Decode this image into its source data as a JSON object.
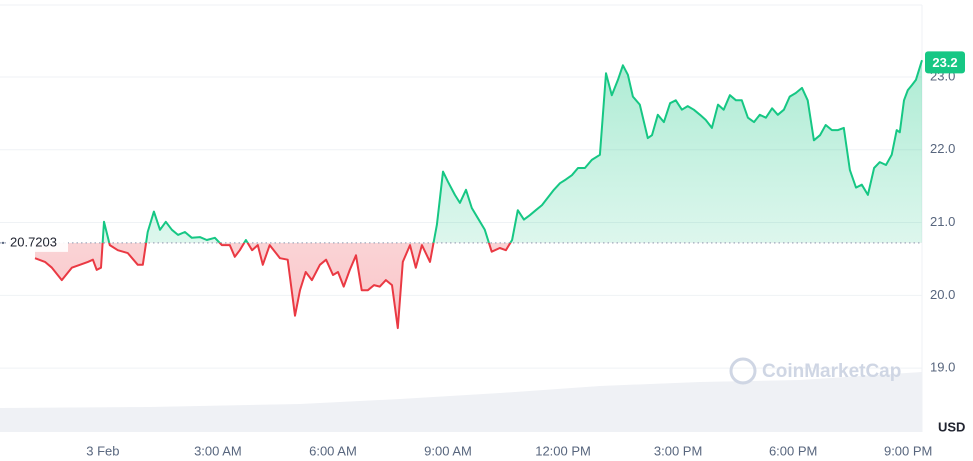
{
  "chart_data": {
    "type": "line",
    "y_axis_label": "USD",
    "watermark": "CoinMarketCap",
    "reference_price": 20.7203,
    "current_price": 23.2,
    "up_color": "#16c784",
    "down_color": "#ea3943",
    "grid": true,
    "xlim": [
      -1.77,
      21.36
    ],
    "ylim": [
      18.15,
      23.99
    ],
    "xticks": [
      {
        "value": 0,
        "label": "3 Feb"
      },
      {
        "value": 3,
        "label": "3:00 AM"
      },
      {
        "value": 6,
        "label": "6:00 AM"
      },
      {
        "value": 9,
        "label": "9:00 AM"
      },
      {
        "value": 12,
        "label": "12:00 PM"
      },
      {
        "value": 15,
        "label": "3:00 PM"
      },
      {
        "value": 18,
        "label": "6:00 PM"
      },
      {
        "value": 21,
        "label": "9:00 PM"
      }
    ],
    "yticks": [
      {
        "value": 19,
        "label": "19.0"
      },
      {
        "value": 20,
        "label": "20.0"
      },
      {
        "value": 21,
        "label": "21.0"
      },
      {
        "value": 22,
        "label": "22.0"
      },
      {
        "value": 23,
        "label": "23.0"
      }
    ],
    "x": [
      -1.77,
      -1.51,
      -1.33,
      -1.07,
      -0.81,
      -0.6,
      -0.39,
      -0.26,
      -0.16,
      -0.05,
      0.03,
      0.18,
      0.39,
      0.65,
      0.91,
      1.04,
      1.17,
      1.33,
      1.49,
      1.64,
      1.8,
      1.96,
      2.14,
      2.32,
      2.53,
      2.71,
      2.92,
      3.1,
      3.31,
      3.44,
      3.57,
      3.73,
      3.89,
      4.04,
      4.17,
      4.35,
      4.62,
      4.82,
      5.01,
      5.14,
      5.29,
      5.45,
      5.66,
      5.82,
      6.0,
      6.13,
      6.28,
      6.44,
      6.6,
      6.75,
      6.91,
      7.07,
      7.22,
      7.38,
      7.54,
      7.69,
      7.82,
      8.01,
      8.16,
      8.32,
      8.53,
      8.71,
      8.87,
      9.0,
      9.18,
      9.31,
      9.47,
      9.62,
      9.78,
      9.96,
      10.14,
      10.35,
      10.51,
      10.67,
      10.82,
      10.98,
      11.13,
      11.29,
      11.45,
      11.6,
      11.76,
      11.92,
      12.07,
      12.23,
      12.39,
      12.57,
      12.75,
      12.96,
      13.12,
      13.27,
      13.43,
      13.56,
      13.69,
      13.82,
      14.0,
      14.21,
      14.32,
      14.47,
      14.63,
      14.79,
      14.94,
      15.1,
      15.25,
      15.41,
      15.57,
      15.72,
      15.88,
      16.04,
      16.19,
      16.35,
      16.51,
      16.66,
      16.82,
      16.98,
      17.13,
      17.29,
      17.45,
      17.6,
      17.76,
      17.91,
      18.07,
      18.23,
      18.38,
      18.54,
      18.7,
      18.85,
      19.01,
      19.17,
      19.32,
      19.48,
      19.64,
      19.79,
      19.95,
      20.11,
      20.26,
      20.42,
      20.57,
      20.7,
      20.78,
      20.89,
      20.99,
      21.1,
      21.2,
      21.36
    ],
    "series": [
      {
        "values": [
          20.51,
          20.46,
          20.38,
          20.21,
          20.38,
          20.42,
          20.46,
          20.49,
          20.35,
          20.38,
          21.01,
          20.69,
          20.62,
          20.58,
          20.42,
          20.42,
          20.87,
          21.15,
          20.9,
          21.01,
          20.9,
          20.83,
          20.87,
          20.79,
          20.8,
          20.76,
          20.79,
          20.69,
          20.69,
          20.53,
          20.62,
          20.76,
          20.62,
          20.69,
          20.42,
          20.69,
          20.51,
          20.49,
          19.72,
          20.07,
          20.32,
          20.21,
          20.42,
          20.49,
          20.28,
          20.32,
          20.12,
          20.35,
          20.55,
          20.07,
          20.07,
          20.14,
          20.12,
          20.21,
          20.14,
          19.55,
          20.46,
          20.69,
          20.38,
          20.69,
          20.46,
          20.97,
          21.7,
          21.56,
          21.38,
          21.27,
          21.45,
          21.2,
          21.06,
          20.9,
          20.6,
          20.65,
          20.62,
          20.76,
          21.17,
          21.04,
          21.1,
          21.17,
          21.24,
          21.34,
          21.45,
          21.54,
          21.59,
          21.65,
          21.75,
          21.75,
          21.86,
          21.93,
          23.05,
          22.75,
          22.96,
          23.16,
          23.03,
          22.73,
          22.62,
          22.16,
          22.2,
          22.48,
          22.38,
          22.64,
          22.68,
          22.55,
          22.6,
          22.55,
          22.48,
          22.41,
          22.3,
          22.62,
          22.55,
          22.75,
          22.68,
          22.68,
          22.44,
          22.38,
          22.48,
          22.44,
          22.57,
          22.48,
          22.55,
          22.73,
          22.78,
          22.85,
          22.68,
          22.13,
          22.2,
          22.34,
          22.27,
          22.27,
          22.3,
          21.72,
          21.48,
          21.52,
          21.38,
          21.75,
          21.83,
          21.79,
          21.93,
          22.27,
          22.24,
          22.68,
          22.82,
          22.89,
          22.96,
          23.23
        ]
      }
    ]
  }
}
